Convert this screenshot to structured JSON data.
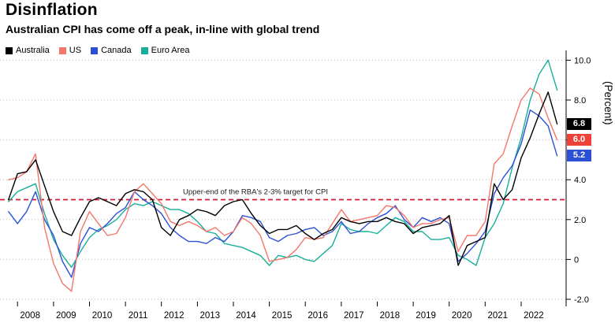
{
  "header": {
    "title": "Disinflation",
    "subtitle": "Australian CPI has come off a peak, in-line with global trend"
  },
  "axis": {
    "ylabel": "(Percent)",
    "yticks": [
      {
        "v": 10,
        "label": "10.0"
      },
      {
        "v": 8,
        "label": "8.0"
      },
      {
        "v": 6,
        "label": "6.0"
      },
      {
        "v": 4,
        "label": "4.0"
      },
      {
        "v": 2,
        "label": "2.0"
      },
      {
        "v": 0,
        "label": "0"
      },
      {
        "v": -2,
        "label": "-2.0"
      }
    ],
    "xticks": [
      2008,
      2009,
      2010,
      2011,
      2012,
      2013,
      2014,
      2015,
      2016,
      2017,
      2018,
      2019,
      2020,
      2021,
      2022
    ]
  },
  "target_line": {
    "value": 3,
    "label": "Upper-end of the RBA's 2-3% target for CPI",
    "color": "#cf1d33"
  },
  "end_labels": [
    {
      "series": "Australia",
      "text": "6.8",
      "value": 6.8,
      "bg": "#000000",
      "fg": "#ffffff"
    },
    {
      "series": "US",
      "text": "6.0",
      "value": 6.0,
      "bg": "#ee4238",
      "fg": "#ffffff"
    },
    {
      "series": "Canada",
      "text": "5.2",
      "value": 5.2,
      "bg": "#2b50d6",
      "fg": "#ffffff"
    }
  ],
  "chart_data": {
    "type": "line",
    "title": "Disinflation",
    "subtitle": "Australian CPI has come off a peak, in-line with global trend",
    "ylabel": "(Percent)",
    "x_unit": "quarterly, year + quarter fraction",
    "x_start": 2007.75,
    "x_step": 0.25,
    "xlim": [
      2007.6,
      2023.25
    ],
    "ylim": [
      -2.8,
      10.9
    ],
    "grid": "dotted-horizontal",
    "legend_position": "top-left",
    "annotation": "Upper-end of the RBA's 2-3% target for CPI at y=3",
    "series": [
      {
        "name": "Australia",
        "color": "#000000",
        "values": [
          3.0,
          4.3,
          4.4,
          5.0,
          3.7,
          2.4,
          1.4,
          1.2,
          2.1,
          2.9,
          3.1,
          2.9,
          2.7,
          3.3,
          3.5,
          3.4,
          3.0,
          1.6,
          1.2,
          2.0,
          2.2,
          2.5,
          2.4,
          2.2,
          2.7,
          2.9,
          3.0,
          2.3,
          1.7,
          1.3,
          1.5,
          1.5,
          1.7,
          1.3,
          1.0,
          1.3,
          1.5,
          2.1,
          1.9,
          1.8,
          1.9,
          1.9,
          2.1,
          1.9,
          1.8,
          1.3,
          1.6,
          1.7,
          1.8,
          2.2,
          -0.3,
          0.7,
          0.9,
          1.1,
          3.8,
          3.0,
          3.5,
          5.1,
          6.1,
          7.3,
          8.4,
          6.8
        ]
      },
      {
        "name": "US",
        "color": "#f4766b",
        "values": [
          4.0,
          4.1,
          4.4,
          5.3,
          1.6,
          -0.2,
          -1.2,
          -1.6,
          1.4,
          2.4,
          1.8,
          1.2,
          1.3,
          2.1,
          3.4,
          3.8,
          3.3,
          2.8,
          1.9,
          1.7,
          1.9,
          1.7,
          1.4,
          1.6,
          1.2,
          1.4,
          2.1,
          1.8,
          1.2,
          -0.1,
          0.0,
          0.1,
          0.5,
          1.1,
          1.0,
          1.1,
          1.8,
          2.5,
          1.9,
          2.0,
          2.1,
          2.2,
          2.7,
          2.6,
          2.2,
          1.6,
          1.8,
          1.8,
          2.0,
          2.1,
          0.4,
          1.2,
          1.2,
          1.9,
          4.8,
          5.3,
          6.7,
          8.0,
          8.6,
          8.3,
          7.1,
          6.0
        ]
      },
      {
        "name": "Canada",
        "color": "#2b50d6",
        "values": [
          2.4,
          1.8,
          2.4,
          3.4,
          2.0,
          1.2,
          -0.1,
          -0.9,
          0.8,
          1.6,
          1.4,
          1.8,
          2.3,
          2.6,
          3.4,
          3.0,
          2.7,
          2.3,
          1.6,
          1.2,
          0.9,
          0.9,
          0.8,
          1.1,
          0.9,
          1.4,
          2.2,
          2.1,
          1.9,
          1.1,
          0.9,
          1.2,
          1.3,
          1.5,
          1.6,
          1.2,
          1.4,
          1.9,
          1.3,
          1.4,
          1.8,
          2.1,
          2.3,
          2.7,
          2.0,
          1.6,
          2.1,
          1.9,
          2.1,
          1.8,
          -0.1,
          0.3,
          0.8,
          1.4,
          3.3,
          4.1,
          4.7,
          5.8,
          7.5,
          7.2,
          6.7,
          5.2
        ]
      },
      {
        "name": "Euro Area",
        "color": "#18af9a",
        "values": [
          2.9,
          3.4,
          3.6,
          3.8,
          2.3,
          1.0,
          0.2,
          -0.4,
          0.4,
          1.1,
          1.5,
          1.7,
          2.0,
          2.5,
          2.8,
          2.7,
          2.9,
          2.7,
          2.5,
          2.5,
          2.3,
          1.9,
          1.4,
          1.3,
          0.8,
          0.7,
          0.6,
          0.4,
          0.2,
          -0.3,
          0.2,
          0.1,
          0.2,
          0.0,
          -0.1,
          0.3,
          0.7,
          1.8,
          1.5,
          1.4,
          1.4,
          1.3,
          1.7,
          2.1,
          1.9,
          1.4,
          1.4,
          1.0,
          1.0,
          1.1,
          0.2,
          0.0,
          -0.3,
          1.1,
          1.8,
          2.8,
          4.6,
          6.1,
          8.0,
          9.3,
          10.0,
          8.5
        ]
      }
    ]
  }
}
